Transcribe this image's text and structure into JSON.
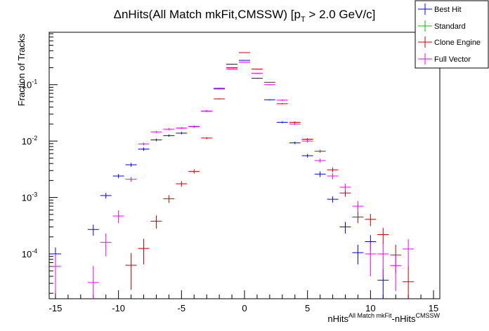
{
  "chart_data": {
    "type": "scatter",
    "title": {
      "prefix": "ΔnHits(All Match mkFit,CMSSW) [p",
      "sub": "T",
      "suffix": " > 2.0 GeV/c]"
    },
    "ylabel": "Fraction of Tracks",
    "xlabel": {
      "a": "nHits",
      "a_sup": "All Match mkFit",
      "b": "-nHits",
      "b_sup": "CMSSW"
    },
    "xlim": [
      -15.5,
      15.5
    ],
    "ylim": [
      1.6e-05,
      0.85
    ],
    "yscale": "log",
    "x_ticks": [
      -15,
      -10,
      -5,
      0,
      5,
      10,
      15
    ],
    "x_tick_labels": [
      "-15",
      "-10",
      "-5",
      "0",
      "5",
      "10",
      "15"
    ],
    "y_tick_labels": [
      {
        "base": "10",
        "exp": "-4",
        "value": 0.0001
      },
      {
        "base": "10",
        "exp": "-3",
        "value": 0.001
      },
      {
        "base": "10",
        "exp": "-2",
        "value": 0.01
      },
      {
        "base": "10",
        "exp": "-1",
        "value": 0.1
      }
    ],
    "legend_position": "top-right",
    "series": [
      {
        "name": "Best Hit",
        "color": "#0000ff",
        "x": [
          -15,
          -12,
          -11,
          -10,
          -9,
          -8,
          -7,
          -6,
          -5,
          -4,
          -3,
          -2,
          -1,
          0,
          1,
          2,
          3,
          4,
          5,
          6,
          7,
          8,
          9,
          10,
          11
        ],
        "y": [
          0.0001,
          0.00027,
          0.00108,
          0.0024,
          0.0038,
          0.0072,
          0.0105,
          0.0125,
          0.0138,
          0.018,
          0.034,
          0.086,
          0.23,
          0.27,
          0.13,
          0.054,
          0.0215,
          0.0093,
          0.0055,
          0.0026,
          0.00093,
          0.0003,
          0.000105,
          0.000165,
          3.4e-05
        ],
        "err": [
          3e-05,
          6e-05,
          0.00012,
          0.0002,
          0.0003,
          0.0005,
          0.0006,
          0.0006,
          0.0007,
          0.0008,
          0.0012,
          0.002,
          0.003,
          0.003,
          0.002,
          0.0012,
          0.0008,
          0.0005,
          0.0004,
          0.0003,
          0.00012,
          7e-05,
          4e-05,
          5e-05,
          2e-05
        ]
      },
      {
        "name": "Standard",
        "color": "#00c000",
        "x": [],
        "y": [],
        "err": []
      },
      {
        "name": "Clone Engine",
        "color": "#d00000",
        "x": [
          -9,
          -8,
          -7,
          -6,
          -5,
          -4,
          -3,
          -2,
          -1,
          0,
          1,
          2,
          3,
          4,
          5,
          6,
          7,
          8,
          9,
          10,
          11,
          12,
          13
        ],
        "y": [
          6.3e-05,
          0.000125,
          0.00038,
          0.00095,
          0.00175,
          0.0029,
          0.0113,
          0.056,
          0.2,
          0.37,
          0.19,
          0.11,
          0.046,
          0.0215,
          0.0108,
          0.0066,
          0.0031,
          0.0012,
          0.00045,
          0.00041,
          0.00022,
          9.5e-05,
          3.2e-05
        ],
        "err": [
          4e-05,
          6e-05,
          0.0001,
          0.00015,
          0.0002,
          0.00026,
          0.0005,
          0.0012,
          0.0025,
          0.0035,
          0.0025,
          0.0018,
          0.0011,
          0.0008,
          0.0005,
          0.0004,
          0.0003,
          0.00017,
          0.0001,
          0.0001,
          7e-05,
          5e-05,
          3e-05
        ]
      },
      {
        "name": "Full Vector",
        "color": "#ff00ff",
        "x": [
          -15,
          -12,
          -11,
          -10,
          -9,
          -8,
          -7,
          -6,
          -5,
          -4,
          -3,
          -2,
          -1,
          0,
          1,
          2,
          3,
          4,
          5,
          6,
          7,
          8,
          9,
          10,
          11,
          12,
          13
        ],
        "y": [
          6e-05,
          3.1e-05,
          0.00016,
          0.00047,
          0.0021,
          0.0089,
          0.0145,
          0.0163,
          0.017,
          0.0182,
          0.034,
          0.084,
          0.19,
          0.25,
          0.16,
          0.1,
          0.053,
          0.02,
          0.01,
          0.0045,
          0.0024,
          0.00152,
          0.0007,
          0.0001,
          0.0001,
          6.2e-05,
          0.000122
        ],
        "err": [
          4e-05,
          3e-05,
          7e-05,
          0.00012,
          0.0002,
          0.0005,
          0.0006,
          0.0007,
          0.0007,
          0.0007,
          0.0011,
          0.0018,
          0.0027,
          0.003,
          0.0025,
          0.002,
          0.0014,
          0.0008,
          0.0006,
          0.0004,
          0.0003,
          0.00024,
          0.00016,
          6e-05,
          6e-05,
          4e-05,
          6e-05
        ]
      }
    ]
  }
}
